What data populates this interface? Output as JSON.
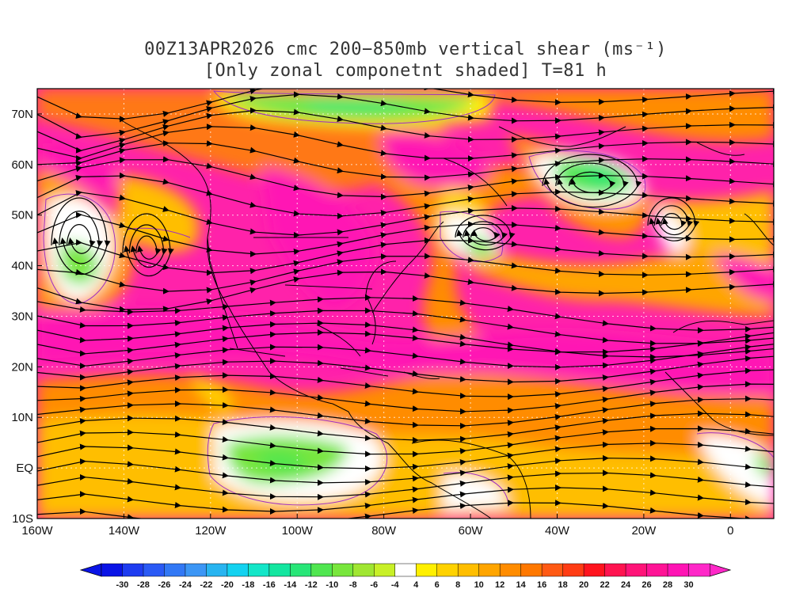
{
  "title": {
    "line1": "00Z13APR2026 cmc 200−850mb vertical shear (ms⁻¹)",
    "line2": "[Only zonal componetnt shaded] T=81 h"
  },
  "map": {
    "lon_range": [
      -160,
      10
    ],
    "lat_range": [
      -10,
      75
    ],
    "lat_ticks": [
      {
        "value": 70,
        "label": "70N"
      },
      {
        "value": 60,
        "label": "60N"
      },
      {
        "value": 50,
        "label": "50N"
      },
      {
        "value": 40,
        "label": "40N"
      },
      {
        "value": 30,
        "label": "30N"
      },
      {
        "value": 20,
        "label": "20N"
      },
      {
        "value": 10,
        "label": "10N"
      },
      {
        "value": 0,
        "label": "EQ"
      },
      {
        "value": -10,
        "label": "10S"
      }
    ],
    "lon_ticks": [
      {
        "value": -160,
        "label": "160W"
      },
      {
        "value": -140,
        "label": "140W"
      },
      {
        "value": -120,
        "label": "120W"
      },
      {
        "value": -100,
        "label": "100W"
      },
      {
        "value": -80,
        "label": "80W"
      },
      {
        "value": -60,
        "label": "60W"
      },
      {
        "value": -40,
        "label": "40W"
      },
      {
        "value": -20,
        "label": "20W"
      },
      {
        "value": 0,
        "label": "0"
      }
    ],
    "grid": "dotted",
    "background_color": "#ff22aa"
  },
  "colorbar": {
    "labels": [
      "-30",
      "-28",
      "-26",
      "-24",
      "-22",
      "-20",
      "-18",
      "-16",
      "-14",
      "-12",
      "-10",
      "-8",
      "-6",
      "-4",
      "4",
      "6",
      "8",
      "10",
      "12",
      "14",
      "16",
      "18",
      "20",
      "22",
      "24",
      "26",
      "28",
      "30"
    ],
    "colors": [
      "#0a14e6",
      "#1e3cf0",
      "#2a5af5",
      "#3278f5",
      "#3c96f5",
      "#28b4f0",
      "#14d2f0",
      "#14e6c8",
      "#14e6a0",
      "#28e678",
      "#50e650",
      "#78e63c",
      "#a0e632",
      "#c8f028",
      "#ffffff",
      "#fff000",
      "#ffd200",
      "#ffbe00",
      "#ffa500",
      "#ff8c00",
      "#ff7800",
      "#ff5a14",
      "#ff3c14",
      "#ff141e",
      "#ff1450",
      "#ff1478",
      "#ff1496",
      "#ff14b4",
      "#ff28c8"
    ],
    "endpoints": [
      "#0a14e6",
      "#ff28c8"
    ]
  }
}
